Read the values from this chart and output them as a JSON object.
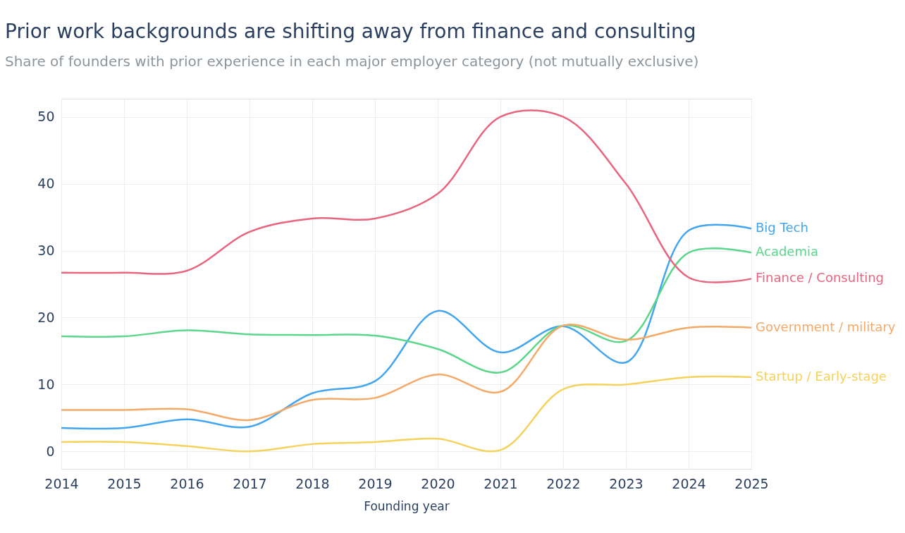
{
  "chart_data": {
    "type": "line",
    "title": "Prior work backgrounds are shifting away from finance and consulting",
    "subtitle": "Share of founders with prior experience in each major employer category (not mutually exclusive)",
    "xlabel": "Founding year",
    "x": [
      2014,
      2015,
      2016,
      2017,
      2018,
      2019,
      2020,
      2021,
      2022,
      2023,
      2024,
      2025
    ],
    "series": [
      {
        "name": "Big Tech",
        "color": "#42a5f0",
        "values": [
          3.5,
          3.5,
          4.8,
          3.7,
          8.7,
          10.5,
          21,
          14.8,
          18.7,
          13.3,
          33,
          33.3
        ]
      },
      {
        "name": "Academia",
        "color": "#5cd68b",
        "values": [
          17.2,
          17.2,
          18.1,
          17.5,
          17.4,
          17.3,
          15.3,
          11.8,
          18.8,
          16.5,
          29.7,
          29.7
        ]
      },
      {
        "name": "Finance / Consulting",
        "color": "#e8657f",
        "values": [
          26.7,
          26.7,
          27,
          32.8,
          34.8,
          34.8,
          38.5,
          50,
          50,
          40,
          26,
          25.8
        ]
      },
      {
        "name": "Government / military",
        "color": "#f5a968",
        "values": [
          6.2,
          6.2,
          6.3,
          4.7,
          7.7,
          8,
          11.5,
          8.9,
          18.8,
          16.7,
          18.5,
          18.5
        ]
      },
      {
        "name": "Startup / Early-stage",
        "color": "#f5d25c",
        "values": [
          1.4,
          1.4,
          0.8,
          0,
          1.1,
          1.4,
          1.9,
          0.2,
          9.3,
          10,
          11.1,
          11.1
        ]
      }
    ],
    "xlim": [
      2014,
      2025
    ],
    "xticks": [
      2014,
      2015,
      2016,
      2017,
      2018,
      2019,
      2020,
      2021,
      2022,
      2023,
      2024,
      2025
    ],
    "ylim": [
      -2.6,
      52.7
    ],
    "yticks": [
      0,
      10,
      20,
      30,
      40,
      50
    ],
    "grid": true,
    "line_style": "solid",
    "marker": "none"
  }
}
